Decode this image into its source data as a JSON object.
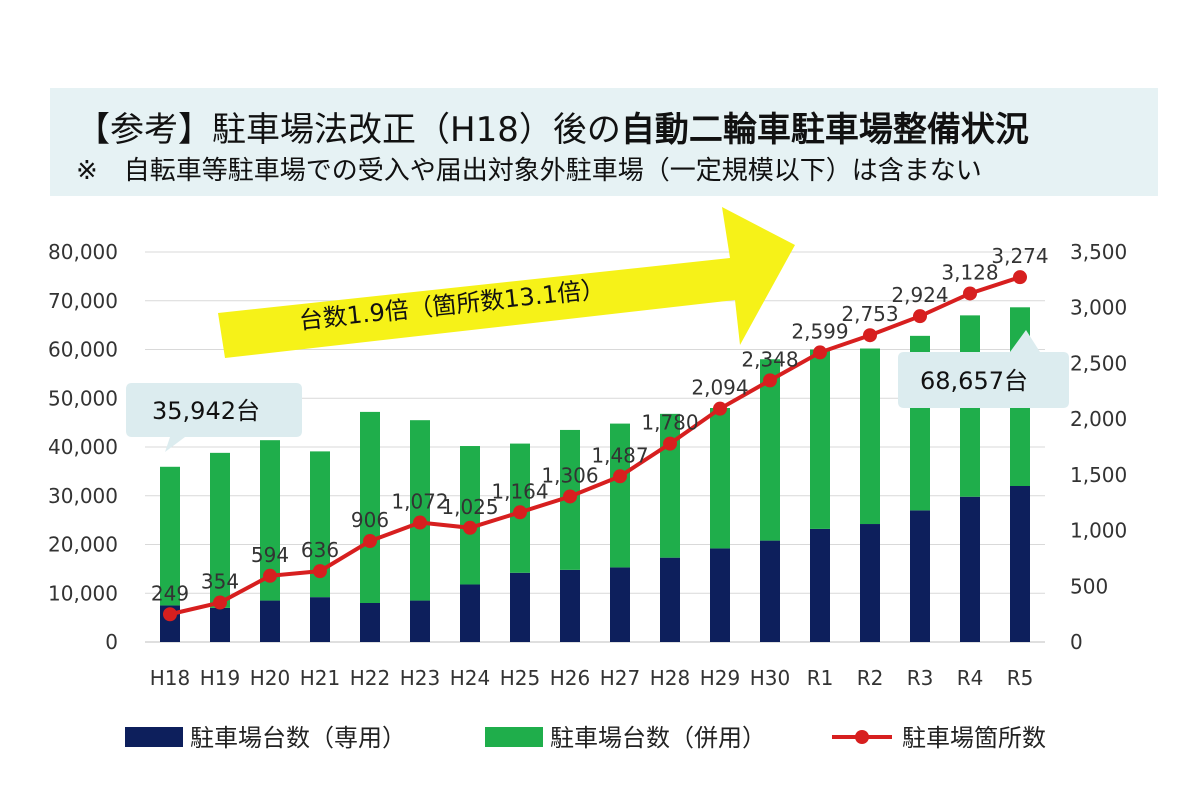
{
  "title": {
    "prefix": "【参考】駐車場法改正（H18）後の",
    "emphasis": "自動二輪車駐車場整備状況",
    "note": "※　自転車等駐車場での受入や届出対象外駐車場（一定規模以下）は含まない"
  },
  "annotations": {
    "arrow_label": "台数1.9倍（箇所数13.1倍）",
    "callout_start": "35,942台",
    "callout_end": "68,657台"
  },
  "colors": {
    "dedicated": "#0d1f5c",
    "shared": "#1fae4b",
    "locations": "#d71f1f",
    "arrow": "#f6f218",
    "callout": "#dcecef",
    "title_bg": "#e6f2f4"
  },
  "chart_data": {
    "type": "bar",
    "stacked": true,
    "categories": [
      "H18",
      "H19",
      "H20",
      "H21",
      "H22",
      "H23",
      "H24",
      "H25",
      "H26",
      "H27",
      "H28",
      "H29",
      "H30",
      "R1",
      "R2",
      "R3",
      "R4",
      "R5"
    ],
    "series": [
      {
        "name": "駐車場台数（専用）",
        "axis": "left",
        "values": [
          7500,
          7000,
          8500,
          9200,
          8000,
          8500,
          11800,
          14200,
          14800,
          15300,
          17300,
          19200,
          20800,
          23200,
          24200,
          27000,
          29800,
          32000
        ]
      },
      {
        "name": "駐車場台数（併用）",
        "axis": "left",
        "values": [
          28442,
          31800,
          32900,
          29900,
          39200,
          37000,
          28400,
          26500,
          28700,
          29500,
          29500,
          28800,
          37200,
          36800,
          36000,
          35800,
          37200,
          36657
        ]
      },
      {
        "name": "駐車場箇所数",
        "type": "line",
        "axis": "right",
        "values": [
          249,
          354,
          594,
          636,
          906,
          1072,
          1025,
          1164,
          1306,
          1487,
          1780,
          2094,
          2348,
          2599,
          2753,
          2924,
          3128,
          3274
        ],
        "labels": [
          "249",
          "354",
          "594",
          "636",
          "906",
          "1,072",
          "1,025",
          "1,164",
          "1,306",
          "1,487",
          "1,780",
          "2,094",
          "2,348",
          "2,599",
          "2,753",
          "2,924",
          "3,128",
          "3,274"
        ]
      }
    ],
    "y_left": {
      "min": 0,
      "max": 80000,
      "ticks": [
        "0",
        "10,000",
        "20,000",
        "30,000",
        "40,000",
        "50,000",
        "60,000",
        "70,000",
        "80,000"
      ]
    },
    "y_right": {
      "min": 0,
      "max": 3500,
      "ticks": [
        "0",
        "500",
        "1,000",
        "1,500",
        "2,000",
        "2,500",
        "3,000",
        "3,500"
      ]
    },
    "grid": true,
    "legend_position": "bottom"
  }
}
